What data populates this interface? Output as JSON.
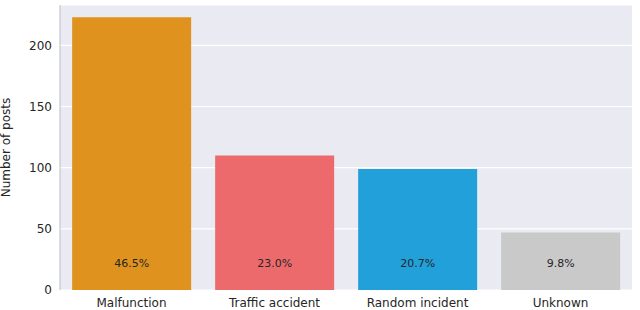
{
  "chart_data": {
    "type": "bar",
    "categories": [
      "Malfunction",
      "Traffic accident",
      "Random incident",
      "Unknown"
    ],
    "values": [
      223,
      110,
      99,
      47
    ],
    "colors": [
      "#e0921f",
      "#ec6a6b",
      "#21a0d9",
      "#c9c9c9"
    ],
    "ylabel": "Number of posts",
    "ylim": [
      0,
      233
    ],
    "yticks": [
      0,
      50,
      100,
      150,
      200
    ],
    "grid": true,
    "annotations": [
      "46.5%",
      "23.0%",
      "20.7%",
      "9.8%"
    ]
  }
}
